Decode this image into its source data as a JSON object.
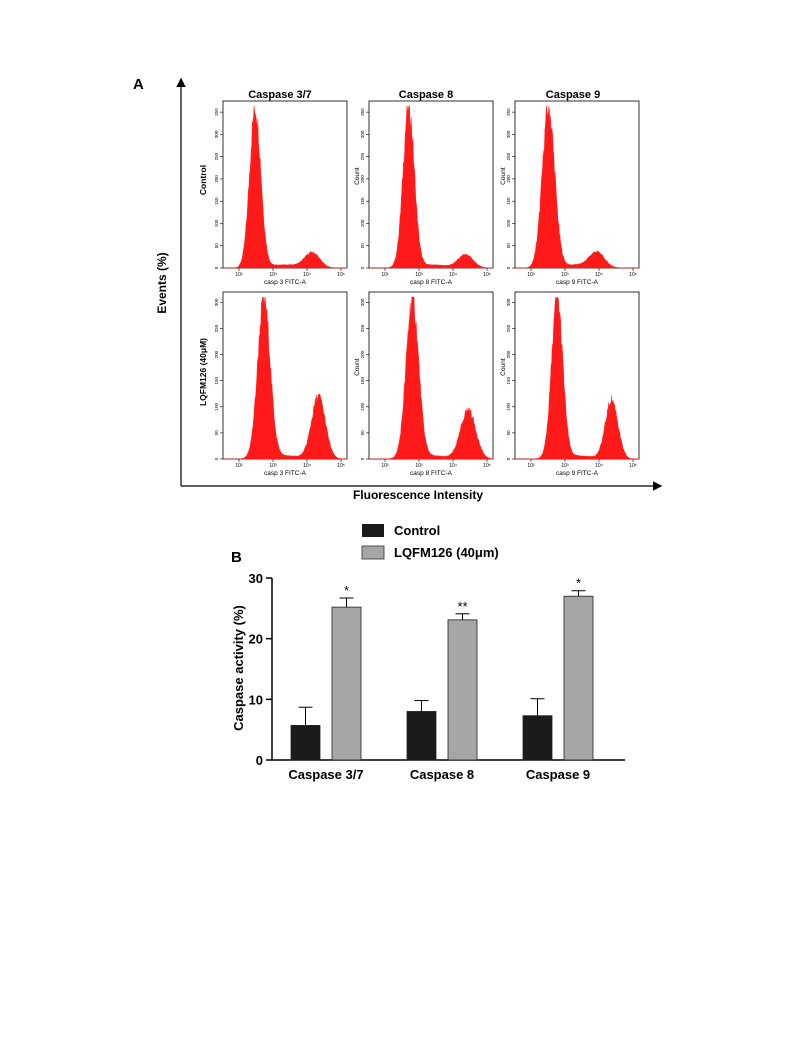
{
  "panel_a": {
    "label": "A",
    "events_label": "Events (%)",
    "fluorescence_label": "Fluorescence Intensity",
    "column_titles": [
      "Caspase 3/7",
      "Caspase 8",
      "Caspase 9"
    ],
    "row_labels": [
      "Control",
      "LQFM126 (40μM)"
    ],
    "x_axis_labels": [
      "casp 3 FITC-A",
      "casp 8 FITC-A",
      "casp 9 FITC-A"
    ],
    "count_label": "Count",
    "x_tick_labels": [
      "10²",
      "10³",
      "10⁴",
      "10⁵"
    ],
    "y_tick_labels_top": [
      "0",
      "50",
      "100",
      "150",
      "200",
      "250",
      "300",
      "350"
    ],
    "y_tick_labels_bottom": [
      "0",
      "50",
      "100",
      "150",
      "200",
      "250",
      "300"
    ],
    "histogram_color": "#ff1a1a"
  },
  "panel_b": {
    "label": "B",
    "legend": [
      {
        "name": "Control",
        "color": "#1a1a1a"
      },
      {
        "name": "LQFM126 (40μm)",
        "color": "#a6a6a6"
      }
    ]
  },
  "chart_data": [
    {
      "type": "bar",
      "title": "",
      "categories": [
        "Caspase 3/7",
        "Caspase 8",
        "Caspase 9"
      ],
      "series": [
        {
          "name": "Control",
          "values": [
            5.7,
            8.0,
            7.3
          ],
          "errors": [
            3.0,
            1.8,
            2.8
          ],
          "color": "#1a1a1a"
        },
        {
          "name": "LQFM126 (40μm)",
          "values": [
            25.2,
            23.1,
            27.0
          ],
          "errors": [
            1.5,
            1.0,
            0.9
          ],
          "color": "#a6a6a6"
        }
      ],
      "significance": [
        "*",
        "**",
        "*"
      ],
      "xlabel": "",
      "ylabel": "Caspase activity (%)",
      "ylim": [
        0,
        30
      ],
      "yticks": [
        "0",
        "10",
        "20",
        "30"
      ],
      "grid": false
    }
  ]
}
